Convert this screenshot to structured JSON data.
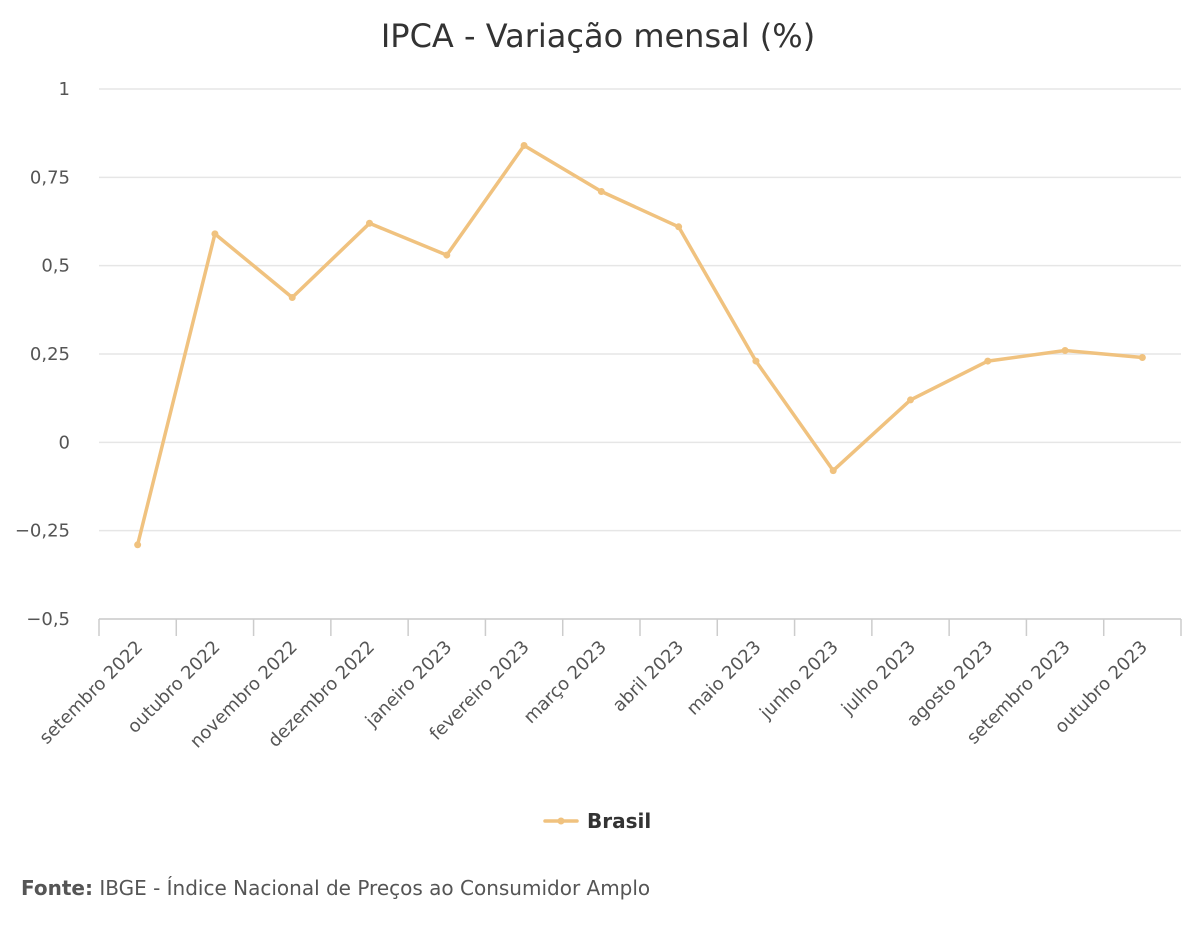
{
  "chart_data": {
    "type": "line",
    "title": "IPCA - Variação mensal (%)",
    "xlabel": "",
    "ylabel": "",
    "categories": [
      "setembro 2022",
      "outubro 2022",
      "novembro 2022",
      "dezembro 2022",
      "janeiro 2023",
      "fevereiro 2023",
      "março 2023",
      "abril 2023",
      "maio 2023",
      "junho 2023",
      "julho 2023",
      "agosto 2023",
      "setembro 2023",
      "outubro 2023"
    ],
    "series": [
      {
        "name": "Brasil",
        "color": "#f0c27f",
        "values": [
          -0.29,
          0.59,
          0.41,
          0.62,
          0.53,
          0.84,
          0.71,
          0.61,
          0.23,
          -0.08,
          0.12,
          0.23,
          0.26,
          0.24
        ]
      }
    ],
    "ylim": [
      -0.5,
      1
    ],
    "yticks": [
      -0.5,
      -0.25,
      0,
      0.25,
      0.5,
      0.75,
      1
    ],
    "ytick_labels": [
      "−0,5",
      "−0,25",
      "0",
      "0,25",
      "0,5",
      "0,75",
      "1"
    ],
    "grid": true,
    "legend": "bottom-center"
  },
  "source": {
    "label": "Fonte:",
    "text": "IBGE - Índice Nacional de Preços ao Consumidor Amplo"
  }
}
